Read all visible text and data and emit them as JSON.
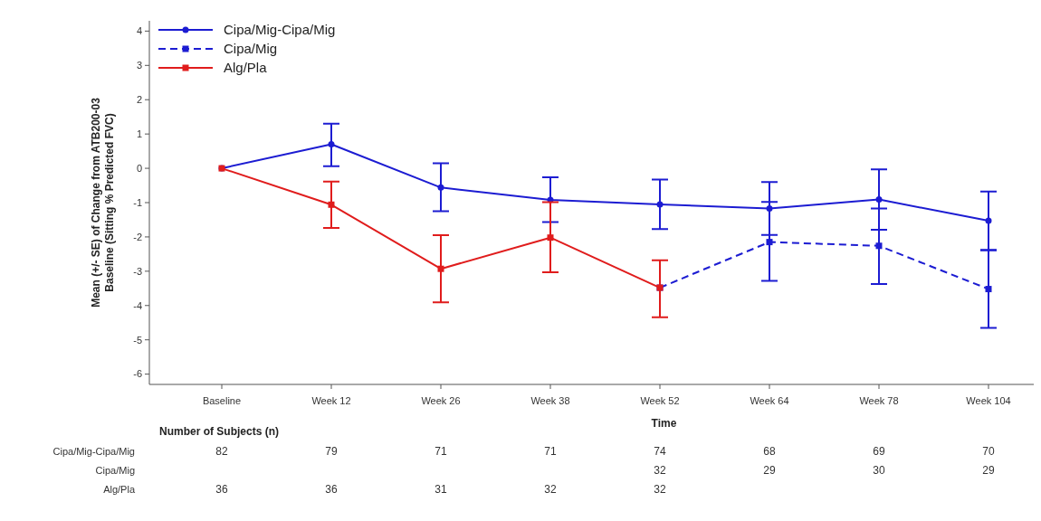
{
  "chart_data": {
    "type": "line",
    "xlabel": "Time",
    "ylabel": "Mean (+/- SE) of Change from ATB200-03\nBaseline (Sitting % Predicted FVC)",
    "categories": [
      "Baseline",
      "Week 12",
      "Week 26",
      "Week 38",
      "Week 52",
      "Week 64",
      "Week 78",
      "Week 104"
    ],
    "ylim": [
      -6.3,
      4.3
    ],
    "yticks": [
      -6,
      -5,
      -4,
      -3,
      -2,
      -1,
      0,
      1,
      2,
      3,
      4
    ],
    "legend": "top left",
    "grid": false,
    "series": [
      {
        "name": "Cipa/Mig-Cipa/Mig",
        "color": "#1c1cd2",
        "marker": "circle",
        "line_style": "solid",
        "values": [
          0,
          0.7,
          -0.56,
          -0.92,
          -1.05,
          -1.17,
          -0.91,
          -1.53
        ],
        "errors": [
          null,
          [
            0.06,
            1.3
          ],
          [
            -1.25,
            0.15
          ],
          [
            -1.57,
            -0.26
          ],
          [
            -1.77,
            -0.33
          ],
          [
            -1.94,
            -0.4
          ],
          [
            -1.79,
            -0.03
          ],
          [
            -2.39,
            -0.68
          ]
        ]
      },
      {
        "name": "Cipa/Mig",
        "color": "#1c1cd2",
        "marker": "square",
        "line_style": "dashed",
        "values": [
          null,
          null,
          null,
          null,
          -3.48,
          -2.15,
          -2.26,
          -3.52
        ],
        "errors": [
          null,
          null,
          null,
          null,
          null,
          [
            -3.28,
            -0.98
          ],
          [
            -3.37,
            -1.17
          ],
          [
            -4.65,
            -2.38
          ]
        ]
      },
      {
        "name": "Alg/Pla",
        "color": "#e01c1c",
        "marker": "square",
        "line_style": "solid",
        "values": [
          0,
          -1.06,
          -2.93,
          -2.02,
          -3.48,
          null,
          null,
          null
        ],
        "errors": [
          null,
          [
            -1.74,
            -0.39
          ],
          [
            -3.91,
            -1.95
          ],
          [
            -3.03,
            -0.99
          ],
          [
            -4.34,
            -2.68
          ],
          null,
          null,
          null
        ]
      }
    ],
    "annotations": [
      "Number of Subjects (n)",
      "Cipa/Mig-Cipa/Mig",
      "82",
      "79",
      "71",
      "71",
      "74",
      "68",
      "69",
      "70",
      "Cipa/Mig",
      "32",
      "29",
      "30",
      "29",
      "Alg/Pla",
      "36",
      "36",
      "31",
      "32",
      "32"
    ]
  }
}
